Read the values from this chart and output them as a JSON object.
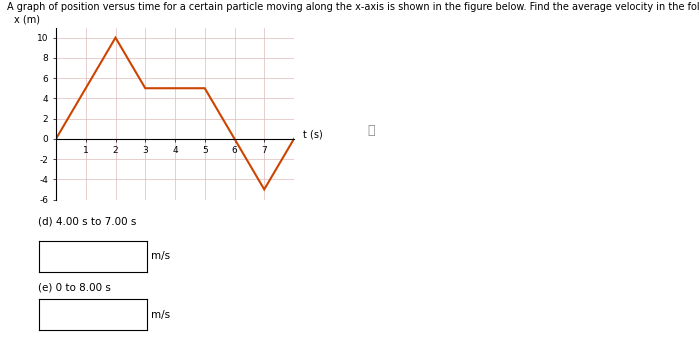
{
  "title": "A graph of position versus time for a certain particle moving along the x-axis is shown in the figure below. Find the average velocity in the following time intervals.",
  "xlabel": "t (s)",
  "ylabel": "x (m)",
  "xlim": [
    0,
    8
  ],
  "ylim": [
    -6,
    11
  ],
  "xticks": [
    1,
    2,
    3,
    4,
    5,
    6,
    7
  ],
  "yticks": [
    -6,
    -4,
    -2,
    0,
    2,
    4,
    6,
    8,
    10
  ],
  "line_x": [
    0,
    2,
    3,
    5,
    7,
    8
  ],
  "line_y": [
    0,
    10,
    5,
    5,
    -5,
    0
  ],
  "line_color": "#cc4400",
  "line_width": 1.5,
  "grid_color": "#ddbbbb",
  "label_d": "(d) 4.00 s to 7.00 s",
  "label_e": "(e) 0 to 8.00 s",
  "unit": "m/s",
  "info_symbol": "ⓘ",
  "title_fontsize": 7,
  "axis_fontsize": 7,
  "tick_fontsize": 6.5,
  "label_fontsize": 7.5
}
